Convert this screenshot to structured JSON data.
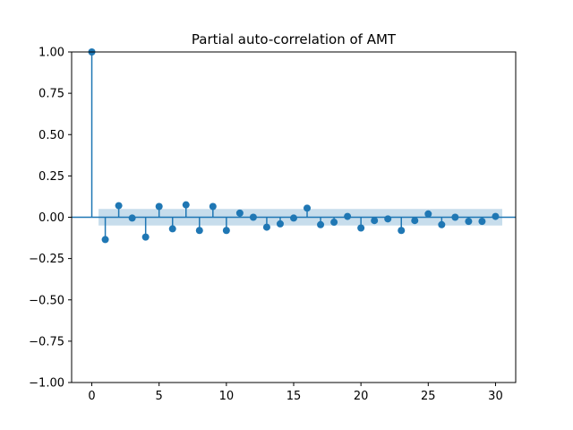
{
  "chart_data": {
    "type": "stem",
    "title": "Partial auto-correlation of AMT",
    "xlabel": "",
    "ylabel": "",
    "xlim": [
      -1.5,
      31.5
    ],
    "ylim": [
      -1.0,
      1.0
    ],
    "xticks": [
      0,
      5,
      10,
      15,
      20,
      25,
      30
    ],
    "xtick_labels": [
      "0",
      "5",
      "10",
      "15",
      "20",
      "25",
      "30"
    ],
    "yticks": [
      1.0,
      0.75,
      0.5,
      0.25,
      0.0,
      -0.25,
      -0.5,
      -0.75,
      -1.0
    ],
    "ytick_labels": [
      "1.00",
      "0.75",
      "0.50",
      "0.25",
      "0.00",
      "−0.25",
      "−0.50",
      "−0.75",
      "−1.00"
    ],
    "grid": false,
    "color": "#1f77b4",
    "band_color": "#1f77b4",
    "confidence_band": [
      -0.05,
      0.05
    ],
    "band_x_range": [
      0.5,
      30.5
    ],
    "lags": [
      0,
      1,
      2,
      3,
      4,
      5,
      6,
      7,
      8,
      9,
      10,
      11,
      12,
      13,
      14,
      15,
      16,
      17,
      18,
      19,
      20,
      21,
      22,
      23,
      24,
      25,
      26,
      27,
      28,
      29,
      30
    ],
    "values": [
      1.0,
      -0.135,
      0.07,
      -0.005,
      -0.12,
      0.065,
      -0.07,
      0.075,
      -0.08,
      0.065,
      -0.08,
      0.025,
      0.0,
      -0.06,
      -0.04,
      -0.005,
      0.055,
      -0.045,
      -0.03,
      0.005,
      -0.065,
      -0.02,
      -0.01,
      -0.08,
      -0.02,
      0.02,
      -0.045,
      0.0,
      -0.025,
      -0.025,
      0.005
    ]
  }
}
